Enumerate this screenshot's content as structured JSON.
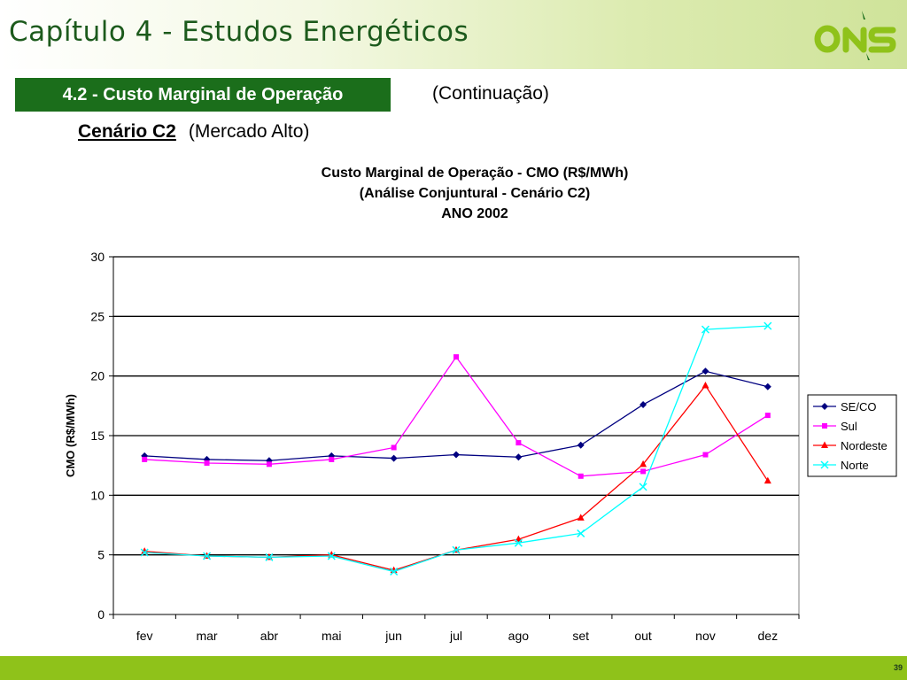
{
  "header": {
    "title": "Capítulo 4 - Estudos Energéticos",
    "logo_text": "ONS"
  },
  "section": {
    "label": "4.2 - Custo Marginal de Operação",
    "continuation": "(Continuação)"
  },
  "scenario": {
    "name": "Cenário C2",
    "description": "(Mercado Alto)"
  },
  "footer": {
    "page_number": "39"
  },
  "colors": {
    "header_green": "#1b6e1b",
    "footer_green": "#8fc21a",
    "se_co": "#000080",
    "sul": "#ff00ff",
    "nordeste": "#ff0000",
    "norte": "#00ffff"
  },
  "chart_data": {
    "type": "line",
    "title_lines": [
      "Custo Marginal de Operação - CMO (R$/MWh)",
      "(Análise Conjuntural - Cenário C2)",
      "ANO 2002"
    ],
    "xlabel": "",
    "ylabel": "CMO (R$/MWh)",
    "ylim": [
      0,
      30
    ],
    "yticks": [
      0,
      5,
      10,
      15,
      20,
      25,
      30
    ],
    "grid": true,
    "legend_position": "right",
    "categories": [
      "fev",
      "mar",
      "abr",
      "mai",
      "jun",
      "jul",
      "ago",
      "set",
      "out",
      "nov",
      "dez"
    ],
    "series": [
      {
        "name": "SE/CO",
        "color": "#000080",
        "marker": "diamond",
        "values": [
          13.3,
          13.0,
          12.9,
          13.3,
          13.1,
          13.4,
          13.2,
          14.2,
          17.6,
          20.4,
          19.1
        ]
      },
      {
        "name": "Sul",
        "color": "#ff00ff",
        "marker": "square",
        "values": [
          13.0,
          12.7,
          12.6,
          13.0,
          14.0,
          21.6,
          14.4,
          11.6,
          12.0,
          13.4,
          16.7
        ]
      },
      {
        "name": "Nordeste",
        "color": "#ff0000",
        "marker": "triangle",
        "values": [
          5.3,
          4.9,
          4.8,
          5.0,
          3.7,
          5.4,
          6.3,
          8.1,
          12.6,
          19.2,
          11.2
        ]
      },
      {
        "name": "Norte",
        "color": "#00ffff",
        "marker": "x",
        "values": [
          5.2,
          4.9,
          4.8,
          4.9,
          3.6,
          5.4,
          6.0,
          6.8,
          10.7,
          23.9,
          24.2
        ]
      }
    ]
  }
}
